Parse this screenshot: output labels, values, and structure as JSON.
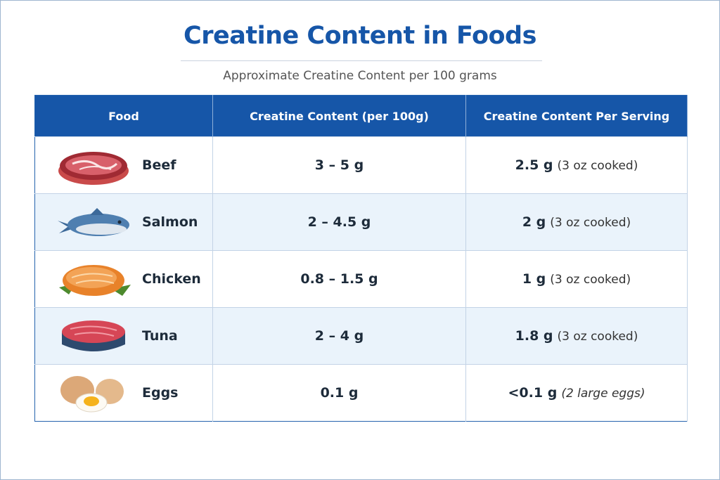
{
  "header": {
    "title": "Creatine Content in Foods",
    "subtitle": "Approximate Creatine Content per 100 grams"
  },
  "table": {
    "columns": [
      "Food",
      "Creatine Content (per 100g)",
      "Creatine Content Per Serving"
    ],
    "rows": [
      {
        "food": "Beef",
        "per_100g": "3 – 5 g",
        "serving_amount": "2.5 g",
        "serving_note": "(3 oz cooked)"
      },
      {
        "food": "Salmon",
        "per_100g": "2 – 4.5 g",
        "serving_amount": "2 g",
        "serving_note": "(3 oz cooked)"
      },
      {
        "food": "Chicken",
        "per_100g": "0.8 – 1.5 g",
        "serving_amount": "1 g",
        "serving_note": "(3 oz cooked)"
      },
      {
        "food": "Tuna",
        "per_100g": "2 – 4 g",
        "serving_amount": "1.8 g",
        "serving_note": "(3 oz cooked)"
      },
      {
        "food": "Eggs",
        "per_100g": "0.1 g",
        "serving_amount": "<0.1 g",
        "serving_note": "(2 large eggs)"
      }
    ]
  }
}
